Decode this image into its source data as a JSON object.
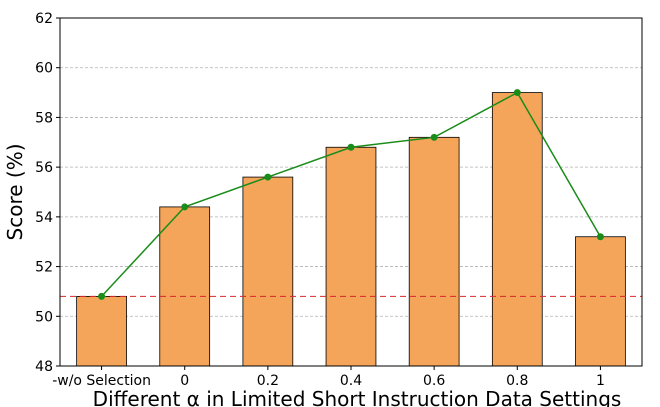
{
  "chart_data": {
    "type": "bar",
    "title": "",
    "xlabel": "Different α in Limited Short Instruction Data Settings",
    "ylabel": "Score (%)",
    "ylim": [
      48,
      62
    ],
    "yticks": [
      48,
      50,
      52,
      54,
      56,
      58,
      60,
      62
    ],
    "categories": [
      "-w/o Selection",
      "0",
      "0.2",
      "0.4",
      "0.6",
      "0.8",
      "1"
    ],
    "values": [
      50.8,
      54.4,
      55.6,
      56.8,
      57.2,
      59.0,
      53.2
    ],
    "line_values": [
      50.8,
      54.4,
      55.6,
      56.8,
      57.2,
      59.0,
      53.2
    ],
    "baseline": 50.8,
    "grid": "y-dashed",
    "bar_color": "#f5a55a",
    "bar_edge_color": "#000000",
    "line_color": "#1a8c1a",
    "baseline_color": "#d62728"
  }
}
